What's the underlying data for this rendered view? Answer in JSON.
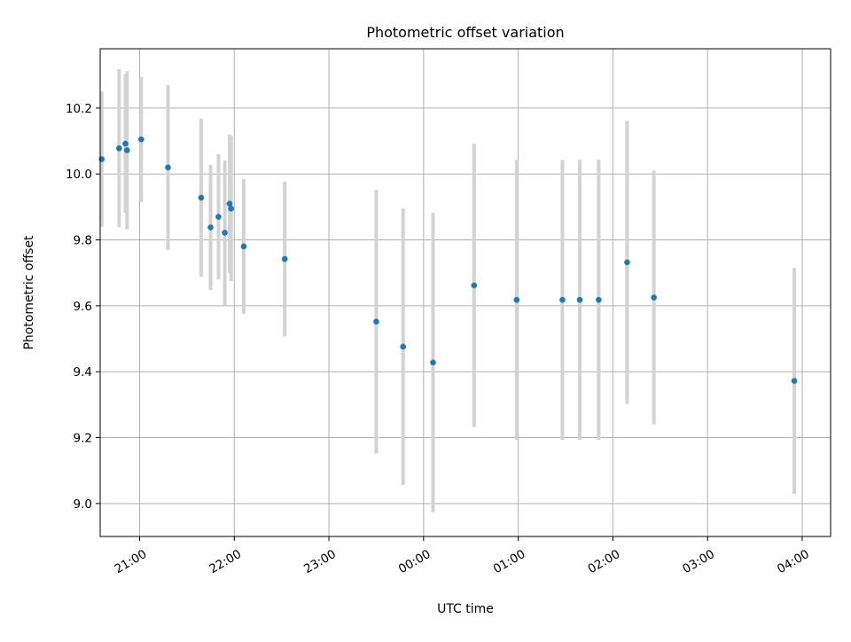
{
  "chart_data": {
    "type": "scatter",
    "title": "Photometric offset variation",
    "xlabel": "UTC time",
    "ylabel": "Photometric offset",
    "x_axis": {
      "kind": "time",
      "range": [
        "20:35",
        "04:18"
      ],
      "ticks": [
        "21:00",
        "22:00",
        "23:00",
        "00:00",
        "01:00",
        "02:00",
        "03:00",
        "04:00"
      ]
    },
    "y_axis": {
      "range": [
        8.9,
        10.38
      ],
      "ticks": [
        "9.0",
        "9.2",
        "9.4",
        "9.6",
        "9.8",
        "10.0",
        "10.2"
      ]
    },
    "grid": true,
    "legend": "none",
    "colors": {
      "point": "#1f77b4",
      "errorbar": "#d3d3d3",
      "grid": "#b0b0b0"
    },
    "points": [
      {
        "x": "20:36",
        "y": 10.045,
        "err": 0.205
      },
      {
        "x": "20:47",
        "y": 10.078,
        "err": 0.24
      },
      {
        "x": "20:51",
        "y": 10.092,
        "err": 0.21
      },
      {
        "x": "20:52",
        "y": 10.072,
        "err": 0.24
      },
      {
        "x": "21:01",
        "y": 10.105,
        "err": 0.19
      },
      {
        "x": "21:18",
        "y": 10.02,
        "err": 0.25
      },
      {
        "x": "21:39",
        "y": 9.928,
        "err": 0.24
      },
      {
        "x": "21:45",
        "y": 9.838,
        "err": 0.19
      },
      {
        "x": "21:50",
        "y": 9.87,
        "err": 0.19
      },
      {
        "x": "21:54",
        "y": 9.822,
        "err": 0.22
      },
      {
        "x": "21:57",
        "y": 9.91,
        "err": 0.21
      },
      {
        "x": "21:58",
        "y": 9.895,
        "err": 0.22
      },
      {
        "x": "22:06",
        "y": 9.78,
        "err": 0.205
      },
      {
        "x": "22:32",
        "y": 9.742,
        "err": 0.235
      },
      {
        "x": "23:30",
        "y": 9.552,
        "err": 0.4
      },
      {
        "x": "23:47",
        "y": 9.476,
        "err": 0.42
      },
      {
        "x": "00:06",
        "y": 9.428,
        "err": 0.455
      },
      {
        "x": "00:32",
        "y": 9.662,
        "err": 0.43
      },
      {
        "x": "00:59",
        "y": 9.618,
        "err": 0.425
      },
      {
        "x": "01:28",
        "y": 9.618,
        "err": 0.425
      },
      {
        "x": "01:39",
        "y": 9.618,
        "err": 0.425
      },
      {
        "x": "01:51",
        "y": 9.618,
        "err": 0.425
      },
      {
        "x": "02:09",
        "y": 9.732,
        "err": 0.43
      },
      {
        "x": "02:26",
        "y": 9.625,
        "err": 0.385
      },
      {
        "x": "03:55",
        "y": 9.372,
        "err": 0.343
      }
    ]
  }
}
